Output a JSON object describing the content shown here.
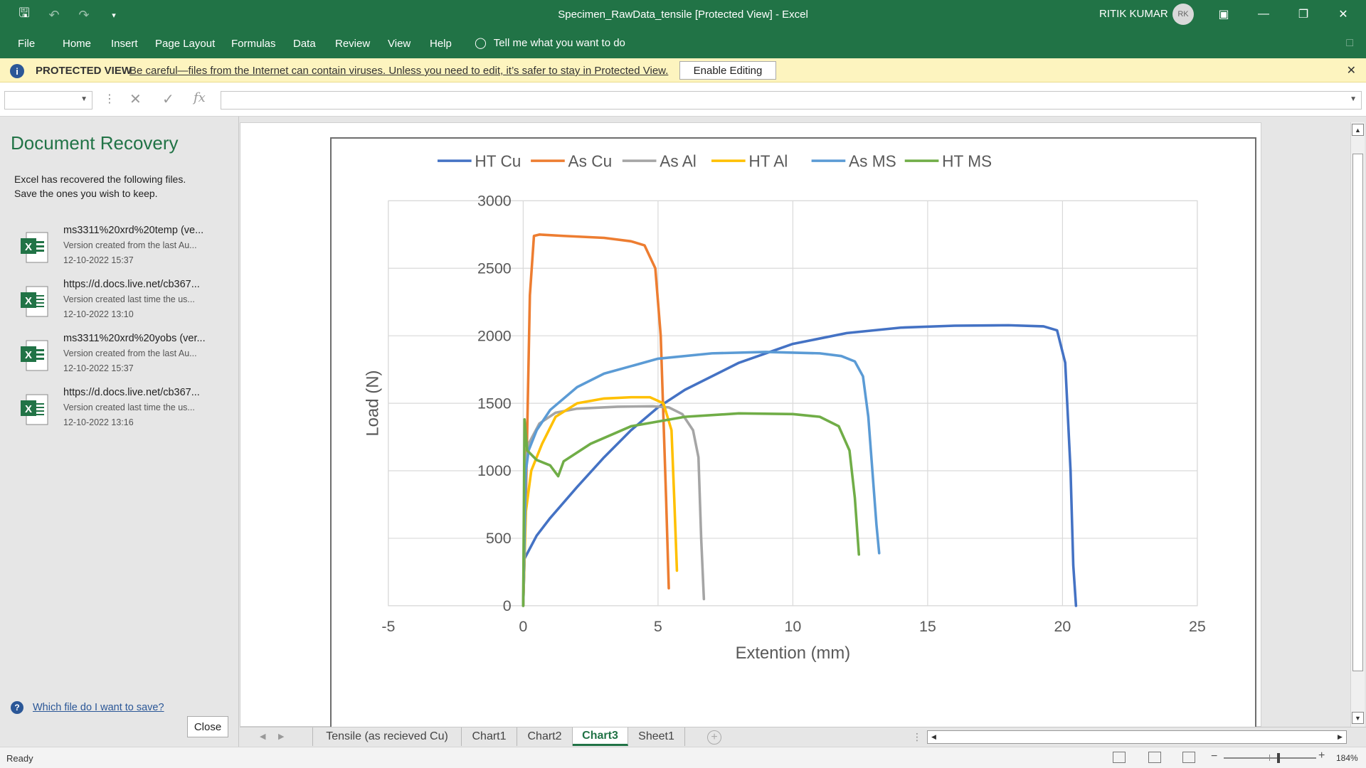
{
  "window": {
    "title": "Specimen_RawData_tensile  [Protected View]  -  Excel",
    "user_name": "RITIK KUMAR",
    "user_initials": "RK"
  },
  "ribbon": {
    "tabs": [
      "File",
      "Home",
      "Insert",
      "Page Layout",
      "Formulas",
      "Data",
      "Review",
      "View",
      "Help"
    ],
    "tell_me": "Tell me what you want to do"
  },
  "protected_view": {
    "label": "PROTECTED VIEW",
    "message": "Be careful—files from the Internet can contain viruses. Unless you need to edit, it’s safer to stay in Protected View.",
    "enable_button": "Enable Editing"
  },
  "formula_bar": {
    "name_box": "",
    "formula": "",
    "fx_label": "fx"
  },
  "recovery": {
    "title": "Document Recovery",
    "description_line1": "Excel has recovered the following files.",
    "description_line2": "Save the ones you wish to keep.",
    "files": [
      {
        "name": "ms3311%20xrd%20temp (ve...",
        "note": "Version created from the last Au...",
        "date": "12-10-2022 15:37",
        "kind": "excel-autosave-icon"
      },
      {
        "name": "https://d.docs.live.net/cb367...",
        "note": "Version created last time the us...",
        "date": "12-10-2022 13:10",
        "kind": "excel-saved-icon"
      },
      {
        "name": "ms3311%20xrd%20yobs (ver...",
        "note": "Version created from the last Au...",
        "date": "12-10-2022 15:37",
        "kind": "excel-autosave-icon"
      },
      {
        "name": "https://d.docs.live.net/cb367...",
        "note": "Version created last time the us...",
        "date": "12-10-2022 13:16",
        "kind": "excel-saved-icon"
      }
    ],
    "help_link": "Which file do I want to save?",
    "close_button": "Close"
  },
  "sheet_tabs": {
    "tabs": [
      "Tensile (as recieved Cu)",
      "Chart1",
      "Chart2",
      "Chart3",
      "Sheet1"
    ],
    "active": "Chart3"
  },
  "status_bar": {
    "status": "Ready",
    "zoom": "184%"
  },
  "chart_data": {
    "type": "line",
    "title": "",
    "xlabel": "Extention (mm)",
    "ylabel": "Load (N)",
    "xlim": [
      -5,
      25
    ],
    "ylim": [
      0,
      3000
    ],
    "xticks": [
      -5,
      0,
      5,
      10,
      15,
      20,
      25
    ],
    "yticks": [
      0,
      500,
      1000,
      1500,
      2000,
      2500,
      3000
    ],
    "grid": true,
    "legend_position": "top",
    "series": [
      {
        "name": "HT Cu",
        "color": "#4472c4",
        "points": [
          [
            0,
            0
          ],
          [
            0.05,
            350
          ],
          [
            0.5,
            520
          ],
          [
            1,
            650
          ],
          [
            2,
            880
          ],
          [
            3,
            1100
          ],
          [
            4,
            1300
          ],
          [
            5,
            1470
          ],
          [
            6,
            1600
          ],
          [
            8,
            1800
          ],
          [
            10,
            1940
          ],
          [
            12,
            2020
          ],
          [
            14,
            2060
          ],
          [
            16,
            2075
          ],
          [
            18,
            2078
          ],
          [
            19.3,
            2070
          ],
          [
            19.8,
            2040
          ],
          [
            20.1,
            1800
          ],
          [
            20.3,
            1000
          ],
          [
            20.4,
            300
          ],
          [
            20.5,
            0
          ]
        ]
      },
      {
        "name": "As Cu",
        "color": "#ed7d31",
        "points": [
          [
            0,
            0
          ],
          [
            0.1,
            800
          ],
          [
            0.25,
            2300
          ],
          [
            0.4,
            2740
          ],
          [
            0.6,
            2750
          ],
          [
            1.5,
            2740
          ],
          [
            3,
            2725
          ],
          [
            4,
            2700
          ],
          [
            4.5,
            2670
          ],
          [
            4.9,
            2500
          ],
          [
            5.1,
            2000
          ],
          [
            5.3,
            800
          ],
          [
            5.4,
            130
          ]
        ]
      },
      {
        "name": "As Al",
        "color": "#a5a5a5",
        "points": [
          [
            0,
            0
          ],
          [
            0.05,
            1000
          ],
          [
            0.2,
            1200
          ],
          [
            0.6,
            1350
          ],
          [
            1.2,
            1430
          ],
          [
            2,
            1460
          ],
          [
            3.5,
            1475
          ],
          [
            4.8,
            1478
          ],
          [
            5.4,
            1470
          ],
          [
            5.9,
            1420
          ],
          [
            6.3,
            1300
          ],
          [
            6.5,
            1100
          ],
          [
            6.6,
            500
          ],
          [
            6.7,
            50
          ]
        ]
      },
      {
        "name": "HT Al",
        "color": "#ffc000",
        "points": [
          [
            0,
            0
          ],
          [
            0.1,
            700
          ],
          [
            0.3,
            1000
          ],
          [
            0.7,
            1200
          ],
          [
            1.2,
            1400
          ],
          [
            2,
            1500
          ],
          [
            3,
            1535
          ],
          [
            4,
            1545
          ],
          [
            4.7,
            1545
          ],
          [
            5.2,
            1500
          ],
          [
            5.5,
            1300
          ],
          [
            5.6,
            800
          ],
          [
            5.7,
            260
          ]
        ]
      },
      {
        "name": "As MS",
        "color": "#5b9bd5",
        "points": [
          [
            0,
            0
          ],
          [
            0.1,
            1000
          ],
          [
            0.2,
            1150
          ],
          [
            0.5,
            1300
          ],
          [
            1,
            1450
          ],
          [
            2,
            1620
          ],
          [
            3,
            1720
          ],
          [
            5,
            1830
          ],
          [
            7,
            1870
          ],
          [
            9,
            1880
          ],
          [
            11,
            1870
          ],
          [
            11.8,
            1850
          ],
          [
            12.3,
            1810
          ],
          [
            12.6,
            1700
          ],
          [
            12.8,
            1400
          ],
          [
            12.95,
            1000
          ],
          [
            13.1,
            600
          ],
          [
            13.2,
            390
          ]
        ]
      },
      {
        "name": "HT MS",
        "color": "#70ad47",
        "points": [
          [
            0,
            0
          ],
          [
            0.05,
            1380
          ],
          [
            0.15,
            1150
          ],
          [
            0.5,
            1080
          ],
          [
            1,
            1040
          ],
          [
            1.3,
            960
          ],
          [
            1.5,
            1070
          ],
          [
            2.5,
            1200
          ],
          [
            4,
            1330
          ],
          [
            6,
            1400
          ],
          [
            8,
            1425
          ],
          [
            10,
            1420
          ],
          [
            11,
            1400
          ],
          [
            11.7,
            1330
          ],
          [
            12.1,
            1150
          ],
          [
            12.3,
            800
          ],
          [
            12.45,
            380
          ]
        ]
      }
    ]
  }
}
